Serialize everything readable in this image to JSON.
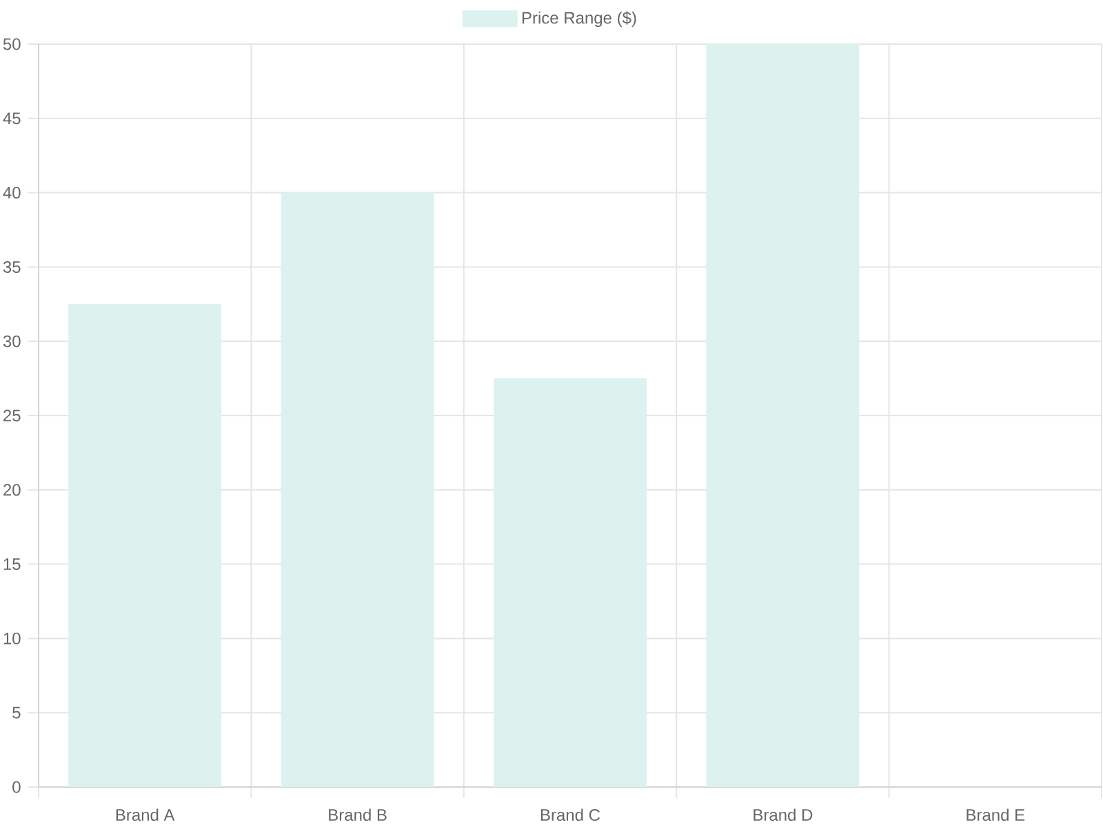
{
  "chart_data": {
    "type": "bar",
    "categories": [
      "Brand A",
      "Brand B",
      "Brand C",
      "Brand D",
      "Brand E"
    ],
    "series": [
      {
        "name": "Price Range ($)",
        "color": "#dbf2ef",
        "values": [
          32.5,
          40,
          27.5,
          50,
          null
        ]
      }
    ],
    "ylim": [
      0,
      50
    ],
    "yticks": [
      0,
      5,
      10,
      15,
      20,
      25,
      30,
      35,
      40,
      45,
      50
    ],
    "grid": true,
    "legend": "top"
  }
}
